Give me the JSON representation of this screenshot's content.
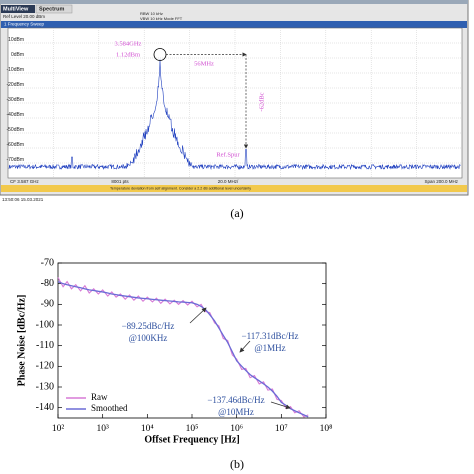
{
  "chart_data": [
    {
      "type": "spectrum",
      "window_tabs": [
        "MultiView",
        "Spectrum"
      ],
      "settings_line": "Ref Level 20.00 dBm",
      "rbw": "RBW 10 kHz",
      "vbw": "VBW 10 kHz  Mode FFT",
      "trace_title": "1 Frequency Sweep",
      "ylim": [
        -80,
        20
      ],
      "yticks": [
        {
          "value": 10,
          "label": "10dBm"
        },
        {
          "value": 0,
          "label": "0dBm"
        },
        {
          "value": -10,
          "label": "-10dBm"
        },
        {
          "value": -20,
          "label": "-20dBm"
        },
        {
          "value": -30,
          "label": "-30dBm"
        },
        {
          "value": -40,
          "label": "-40dBm"
        },
        {
          "value": -50,
          "label": "-50dBm"
        },
        {
          "value": -60,
          "label": "-60dBm"
        },
        {
          "value": -70,
          "label": "-70dBm"
        }
      ],
      "color": "#1f3fbf",
      "peak_frequency": "3.584GHz",
      "peak_level": "1.12dBm",
      "offset": "56MHz",
      "spur_level": "-62dBc",
      "spur_label": "Ref.Spur",
      "footer": [
        "CF 3.587 GHz",
        "8001 pts",
        "20.0 MHz/",
        "Span 200.0 MHz"
      ],
      "status": "Temperature deviation from self alignment. Consider a 2.2 dB additional level uncertainty",
      "timestamp": "13:50:06 15.03.2021",
      "panel_label": "(a)"
    },
    {
      "type": "line",
      "xlabel": "Offset Frequency [Hz]",
      "ylabel": "Phase Noise [dBc/Hz]",
      "log_x": true,
      "xlim": [
        100,
        100000000
      ],
      "xticks": [
        {
          "value": 100,
          "label": "10²"
        },
        {
          "value": 1000,
          "label": "10³"
        },
        {
          "value": 10000,
          "label": "10⁴"
        },
        {
          "value": 100000,
          "label": "10⁵"
        },
        {
          "value": 1000000,
          "label": "10⁶"
        },
        {
          "value": 10000000,
          "label": "10⁷"
        },
        {
          "value": 100000000,
          "label": "10⁸"
        }
      ],
      "ylim": [
        -145,
        -70
      ],
      "yticks": [
        -70,
        -80,
        -90,
        -100,
        -110,
        -120,
        -130,
        -140
      ],
      "x": [
        100,
        130,
        160,
        200,
        250,
        320,
        400,
        500,
        630,
        800,
        1000,
        1300,
        1600,
        2000,
        2500,
        3200,
        4000,
        5000,
        6300,
        8000,
        10000,
        13000,
        16000,
        20000,
        25000,
        32000,
        40000,
        50000,
        63000,
        80000,
        100000,
        130000,
        160000,
        200000,
        250000,
        320000,
        400000,
        500000,
        630000,
        800000,
        1000000,
        1300000,
        1600000,
        2000000,
        2500000,
        3200000,
        4000000,
        5000000,
        6300000,
        8000000,
        10000000,
        13000000,
        16000000,
        20000000,
        25000000,
        32000000,
        40000000
      ],
      "series": [
        {
          "name": "Raw",
          "color": "#d77ad6",
          "values": [
            -77,
            -81.5,
            -79,
            -82.5,
            -80.5,
            -83.5,
            -81,
            -84.5,
            -82.5,
            -85,
            -83,
            -86,
            -84,
            -86.5,
            -85,
            -87.5,
            -85.5,
            -88,
            -86,
            -88.5,
            -86.5,
            -88.8,
            -87,
            -89.5,
            -87.5,
            -89.8,
            -88,
            -90,
            -88.2,
            -90.3,
            -88.5,
            -91.2,
            -90,
            -93.5,
            -94,
            -99,
            -100.5,
            -106.5,
            -107.5,
            -114.5,
            -116.5,
            -121.5,
            -121,
            -125.5,
            -124.5,
            -128.5,
            -127.5,
            -131.5,
            -131,
            -136,
            -136.5,
            -140.5,
            -139.5,
            -142.5,
            -141.5,
            -144.5,
            -143.5
          ]
        },
        {
          "name": "Smoothed",
          "color": "#6b6bd6",
          "values": [
            -79,
            -80,
            -80.5,
            -81,
            -81.5,
            -82,
            -82.5,
            -83,
            -83.3,
            -83.7,
            -84,
            -84.5,
            -85,
            -85.3,
            -85.7,
            -86,
            -86.3,
            -86.6,
            -86.9,
            -87.1,
            -87.3,
            -87.6,
            -87.8,
            -88,
            -88.2,
            -88.4,
            -88.6,
            -88.8,
            -88.9,
            -89.1,
            -89.25,
            -90,
            -91,
            -92.5,
            -95,
            -98,
            -101.5,
            -105,
            -108.5,
            -113,
            -117.31,
            -120,
            -122,
            -124,
            -125.5,
            -127,
            -128.5,
            -130,
            -132,
            -134.5,
            -137.46,
            -139,
            -140.5,
            -141.5,
            -142.5,
            -143.5,
            -144.5
          ]
        }
      ],
      "annotations": [
        [
          "−89.25dBc/Hz",
          "@100KHz"
        ],
        [
          "−117.31dBc/Hz",
          "@1MHz"
        ],
        [
          "−137.46dBc/Hz",
          "@10MHz"
        ]
      ],
      "legend": "lower left",
      "panel_label": "(b)"
    }
  ]
}
